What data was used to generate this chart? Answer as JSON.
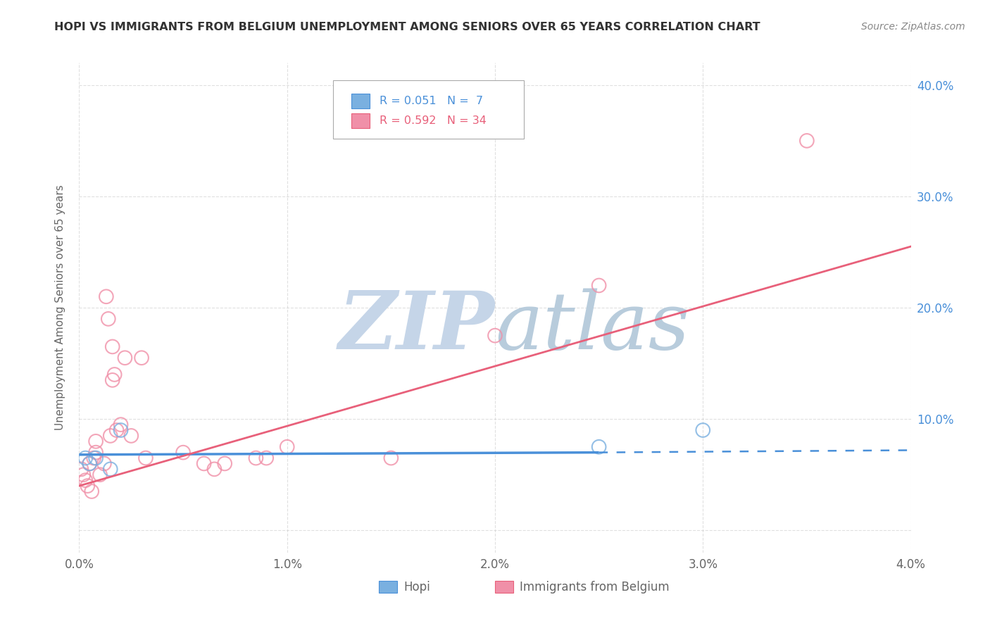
{
  "title": "HOPI VS IMMIGRANTS FROM BELGIUM UNEMPLOYMENT AMONG SENIORS OVER 65 YEARS CORRELATION CHART",
  "source": "Source: ZipAtlas.com",
  "ylabel": "Unemployment Among Seniors over 65 years",
  "legend_label_hopi": "Hopi",
  "legend_label_belgium": "Immigrants from Belgium",
  "legend_R_hopi": "R = 0.051",
  "legend_N_hopi": "N =  7",
  "legend_R_belgium": "R = 0.592",
  "legend_N_belgium": "N = 34",
  "xlim": [
    0.0,
    0.04
  ],
  "ylim": [
    -0.02,
    0.42
  ],
  "x_tick_labels": [
    "0.0%",
    "1.0%",
    "2.0%",
    "3.0%",
    "4.0%"
  ],
  "x_tick_vals": [
    0.0,
    0.01,
    0.02,
    0.03,
    0.04
  ],
  "y_tick_vals": [
    0.0,
    0.1,
    0.2,
    0.3,
    0.4
  ],
  "y_tick_labels_right": [
    "",
    "10.0%",
    "20.0%",
    "30.0%",
    "40.0%"
  ],
  "hopi_line_color": "#4a90d9",
  "hopi_edge_color": "#7ab0e0",
  "belgium_line_color": "#e8607a",
  "belgium_edge_color": "#f090a8",
  "background_color": "#ffffff",
  "watermark_zip_color": "#c5d5e8",
  "watermark_atlas_color": "#b8ccdc",
  "grid_color": "#cccccc",
  "title_color": "#333333",
  "source_color": "#888888",
  "tick_label_color": "#666666",
  "right_tick_color": "#4a90d9",
  "hopi_x": [
    0.0003,
    0.0005,
    0.0008,
    0.0015,
    0.002,
    0.025,
    0.03
  ],
  "hopi_y": [
    0.065,
    0.06,
    0.065,
    0.055,
    0.09,
    0.075,
    0.09
  ],
  "hopi_line_x0": 0.0,
  "hopi_line_x1": 0.025,
  "hopi_line_xdash0": 0.025,
  "hopi_line_xdash1": 0.04,
  "hopi_line_y0": 0.068,
  "hopi_line_y1": 0.07,
  "belgium_x": [
    0.0001,
    0.0002,
    0.0003,
    0.0004,
    0.0005,
    0.0006,
    0.0007,
    0.0008,
    0.001,
    0.0012,
    0.0013,
    0.0015,
    0.0016,
    0.0017,
    0.0018,
    0.002,
    0.0022,
    0.0025,
    0.003,
    0.0032,
    0.005,
    0.006,
    0.0065,
    0.007,
    0.0085,
    0.009,
    0.01,
    0.015,
    0.02,
    0.025,
    0.035,
    0.0014,
    0.0016,
    0.0008
  ],
  "belgium_y": [
    0.055,
    0.05,
    0.045,
    0.04,
    0.06,
    0.035,
    0.065,
    0.07,
    0.05,
    0.06,
    0.21,
    0.085,
    0.165,
    0.14,
    0.09,
    0.095,
    0.155,
    0.085,
    0.155,
    0.065,
    0.07,
    0.06,
    0.055,
    0.06,
    0.065,
    0.065,
    0.075,
    0.065,
    0.175,
    0.22,
    0.35,
    0.19,
    0.135,
    0.08
  ],
  "bel_line_x0": 0.0,
  "bel_line_x1": 0.04,
  "bel_line_y0": 0.04,
  "bel_line_y1": 0.255
}
